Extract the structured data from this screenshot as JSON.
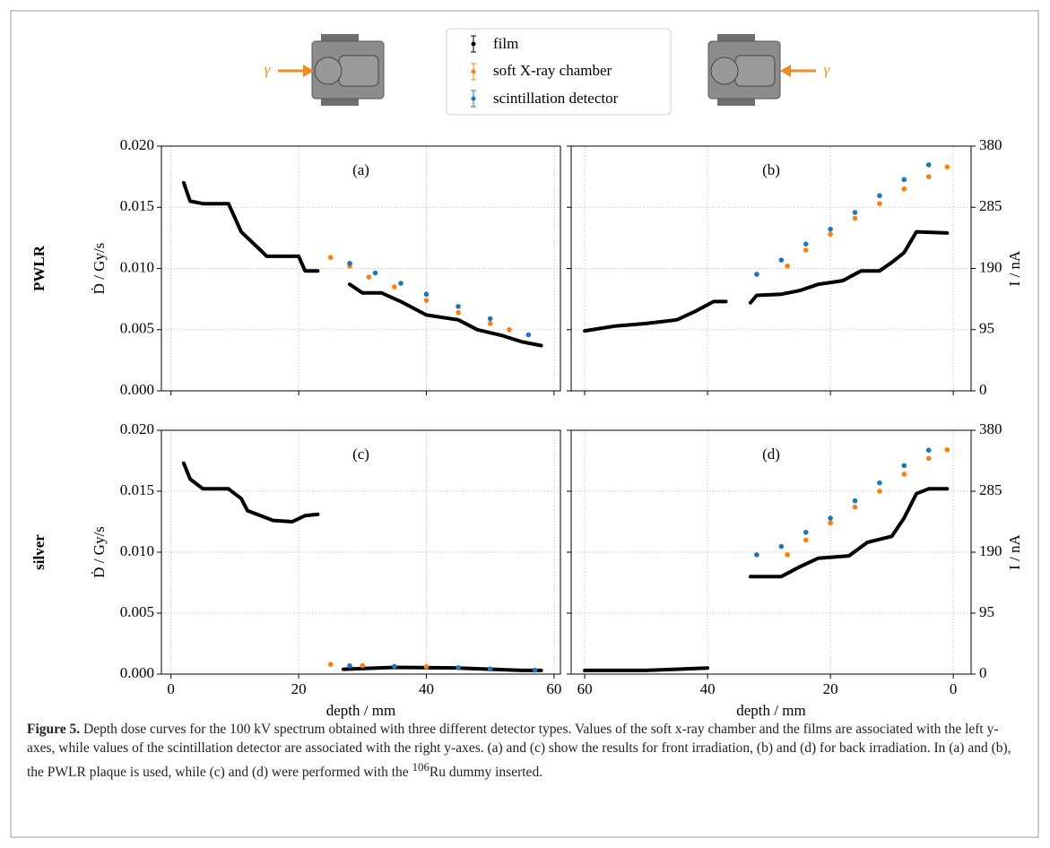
{
  "illustration": {
    "left_label": "γ",
    "right_label": "γ"
  },
  "caption": {
    "label": "Figure 5.",
    "text_before": "Depth dose curves for the 100 kV spectrum obtained with three different detector types. Values of the soft x-ray chamber and the films are associated with the left y-axes, while values of the scintillation detector are associated with the right y-axes. (a) and (c) show the results for front irradiation, (b) and (d) for back irradiation. In (a) and (b), the PWLR plaque is used, while (c) and (d) were performed with the ",
    "superscript": "106",
    "text_after": "Ru dummy inserted."
  },
  "chart_data": [
    {
      "type": "scatter",
      "panel_label": "(a)",
      "row_label": "PWLR",
      "ylabel": "Ḋ / Gy/s",
      "xlim": [
        -1.5,
        61
      ],
      "xticks": [
        0,
        20,
        40,
        60
      ],
      "show_xtick_labels": false,
      "ylim": [
        0,
        0.02
      ],
      "yticks": [
        {
          "value": 0,
          "label": "0.000"
        },
        0.005,
        {
          "value": 0.01,
          "label": "0.010"
        },
        0.015,
        {
          "value": 0.02,
          "label": "0.020"
        }
      ],
      "show_ytick_labels": true,
      "y2lim": [
        0,
        380
      ],
      "grid": true,
      "series": [
        {
          "name": "film",
          "color": "#000000",
          "mode": "line",
          "x": [
            2,
            3,
            5,
            9,
            11,
            14,
            15,
            20,
            21,
            23,
            null,
            28,
            30,
            33,
            36,
            40,
            45,
            48,
            52,
            55,
            58
          ],
          "values": [
            0.017,
            0.0155,
            0.0153,
            0.0153,
            0.013,
            0.0115,
            0.011,
            0.011,
            0.0098,
            0.0098,
            null,
            0.0087,
            0.008,
            0.008,
            0.0073,
            0.0062,
            0.0058,
            0.005,
            0.0045,
            0.004,
            0.0037
          ]
        },
        {
          "name": "soft X-ray chamber",
          "color": "#ff7f0e",
          "mode": "markers",
          "x": [
            25,
            28,
            31,
            35,
            40,
            45,
            50,
            53
          ],
          "values": [
            0.0109,
            0.0102,
            0.0093,
            0.0085,
            0.0074,
            0.0064,
            0.0055,
            0.005
          ]
        },
        {
          "name": "scintillation detector",
          "color": "#1f77b4",
          "mode": "markers",
          "axis": "y2",
          "x": [
            28,
            32,
            36,
            40,
            45,
            50,
            56
          ],
          "values": [
            198,
            183,
            167,
            150,
            131,
            112,
            87
          ]
        }
      ]
    },
    {
      "type": "scatter",
      "panel_label": "(b)",
      "y2label": "I / nA",
      "xlim": [
        62.2,
        -2.9
      ],
      "xticks": [
        60,
        40,
        20,
        0
      ],
      "show_xtick_labels": false,
      "ylim": [
        0,
        0.02
      ],
      "yticks": [
        0,
        0.005,
        0.01,
        0.015,
        0.02
      ],
      "show_ytick_labels": false,
      "y2lim": [
        0,
        380
      ],
      "y2ticks": [
        0,
        95,
        190,
        285,
        380
      ],
      "grid": true,
      "series": [
        {
          "name": "film",
          "color": "#000000",
          "mode": "line",
          "x": [
            60,
            55,
            50,
            45,
            42,
            39,
            37,
            null,
            33,
            32,
            28,
            25,
            22,
            18,
            15,
            12,
            10,
            8,
            6,
            1
          ],
          "values": [
            0.0049,
            0.0053,
            0.0055,
            0.0058,
            0.0065,
            0.0073,
            0.0073,
            null,
            0.0072,
            0.0078,
            0.0079,
            0.0082,
            0.0087,
            0.009,
            0.0098,
            0.0098,
            0.0105,
            0.0113,
            0.013,
            0.0129
          ]
        },
        {
          "name": "soft X-ray chamber",
          "color": "#ff7f0e",
          "mode": "markers",
          "x": [
            27,
            24,
            20,
            16,
            12,
            8,
            4,
            1
          ],
          "values": [
            0.0102,
            0.0115,
            0.0128,
            0.0141,
            0.0153,
            0.0165,
            0.0175,
            0.0183
          ]
        },
        {
          "name": "scintillation detector",
          "color": "#1f77b4",
          "mode": "markers",
          "axis": "y2",
          "x": [
            32,
            28,
            24,
            20,
            16,
            12,
            8,
            4
          ],
          "values": [
            181,
            203,
            228,
            251,
            277,
            303,
            328,
            351
          ]
        }
      ]
    },
    {
      "type": "scatter",
      "panel_label": "(c)",
      "row_label": "silver",
      "ylabel": "Ḋ / Gy/s",
      "xlabel": "depth / mm",
      "xlim": [
        -1.5,
        61
      ],
      "xticks": [
        0,
        20,
        40,
        60
      ],
      "show_xtick_labels": true,
      "ylim": [
        0,
        0.02
      ],
      "yticks": [
        {
          "value": 0,
          "label": "0.000"
        },
        0.005,
        {
          "value": 0.01,
          "label": "0.010"
        },
        0.015,
        {
          "value": 0.02,
          "label": "0.020"
        }
      ],
      "show_ytick_labels": true,
      "y2lim": [
        0,
        380
      ],
      "grid": true,
      "series": [
        {
          "name": "film",
          "color": "#000000",
          "mode": "line",
          "x": [
            2,
            3,
            5,
            9,
            11,
            12,
            16,
            19,
            21,
            23,
            null,
            27,
            35,
            45,
            55,
            58
          ],
          "values": [
            0.0173,
            0.016,
            0.0152,
            0.0152,
            0.0144,
            0.0134,
            0.0126,
            0.0125,
            0.013,
            0.0131,
            null,
            0.0004,
            0.00055,
            0.0005,
            0.0003,
            0.0003
          ]
        },
        {
          "name": "soft X-ray chamber",
          "color": "#ff7f0e",
          "mode": "markers",
          "x": [
            25,
            30,
            40,
            50
          ],
          "values": [
            0.0008,
            0.0007,
            0.0006,
            0.0004
          ]
        },
        {
          "name": "scintillation detector",
          "color": "#1f77b4",
          "mode": "markers",
          "axis": "y2",
          "x": [
            28,
            35,
            45,
            50,
            57
          ],
          "values": [
            13,
            12,
            10,
            8,
            6
          ]
        }
      ]
    },
    {
      "type": "scatter",
      "panel_label": "(d)",
      "y2label": "I / nA",
      "xlabel": "depth / mm",
      "xlim": [
        62.2,
        -2.9
      ],
      "xticks": [
        60,
        40,
        20,
        0
      ],
      "show_xtick_labels": true,
      "ylim": [
        0,
        0.02
      ],
      "yticks": [
        0,
        0.005,
        0.01,
        0.015,
        0.02
      ],
      "show_ytick_labels": false,
      "y2lim": [
        0,
        380
      ],
      "y2ticks": [
        0,
        95,
        190,
        285,
        380
      ],
      "grid": true,
      "series": [
        {
          "name": "film",
          "color": "#000000",
          "mode": "line",
          "x": [
            60,
            50,
            40,
            null,
            33,
            28,
            25,
            22,
            17,
            14,
            10,
            8,
            6,
            4,
            1
          ],
          "values": [
            0.0003,
            0.0003,
            0.0005,
            null,
            0.008,
            0.008,
            0.0088,
            0.0095,
            0.0097,
            0.0108,
            0.0113,
            0.0128,
            0.0148,
            0.0152,
            0.0152
          ]
        },
        {
          "name": "soft X-ray chamber",
          "color": "#ff7f0e",
          "mode": "markers",
          "x": [
            27,
            24,
            20,
            16,
            12,
            8,
            4,
            1
          ],
          "values": [
            0.0098,
            0.011,
            0.0124,
            0.0137,
            0.015,
            0.0164,
            0.0177,
            0.0184
          ]
        },
        {
          "name": "scintillation detector",
          "color": "#1f77b4",
          "mode": "markers",
          "axis": "y2",
          "x": [
            32,
            28,
            24,
            20,
            16,
            12,
            8,
            4
          ],
          "values": [
            186,
            199,
            221,
            243,
            270,
            298,
            325,
            349
          ]
        }
      ]
    }
  ]
}
